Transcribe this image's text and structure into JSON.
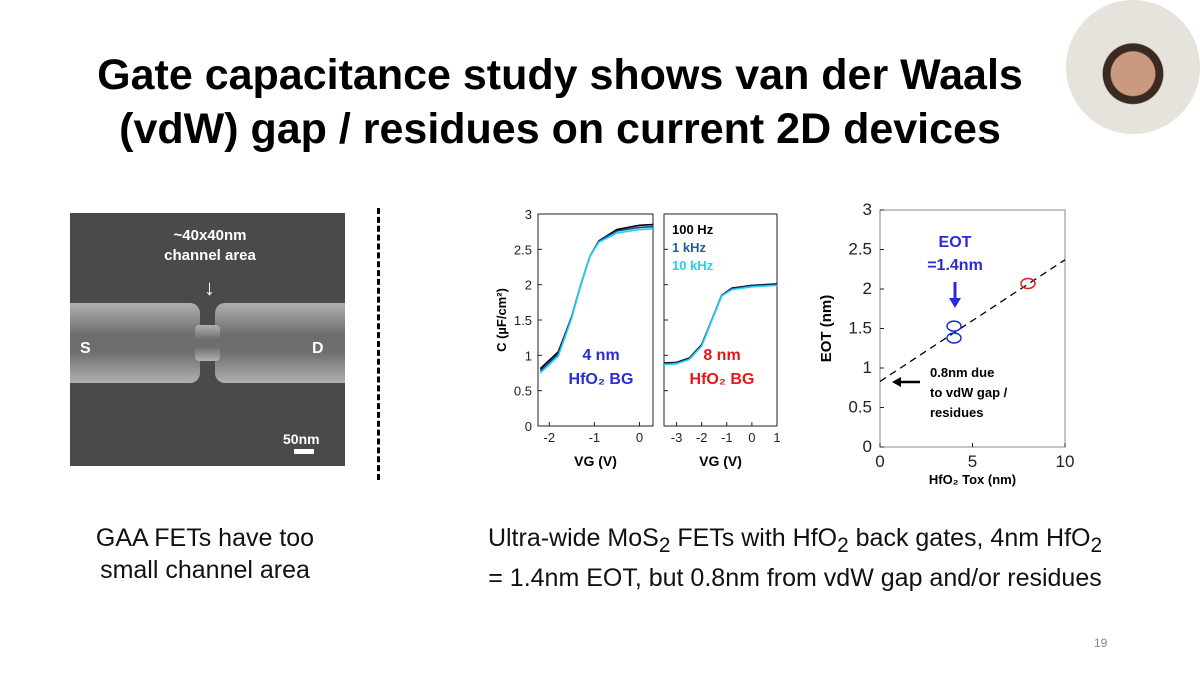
{
  "slide": {
    "title_line1": "Gate capacitance study shows van der Waals",
    "title_line2": "(vdW) gap / residues on current 2D devices",
    "page_number": "19"
  },
  "sem": {
    "label_top1": "~40x40nm",
    "label_top2": "channel area",
    "source": "S",
    "drain": "D",
    "scale": "50nm"
  },
  "captions": {
    "left_line1": "GAA FETs have too",
    "left_line2": "small channel area",
    "right_line1_a": "Ultra-wide MoS",
    "right_line1_sub1": "2",
    "right_line1_b": " FETs with HfO",
    "right_line1_sub2": "2",
    "right_line1_c": " back gates, 4nm HfO",
    "right_line1_sub3": "2",
    "right_line2": "= 1.4nm EOT, but 0.8nm from vdW gap and/or residues"
  },
  "chart_data": [
    {
      "type": "line",
      "title": "",
      "ylabel": "C (µF/cm²)",
      "xlabel": "VG (V)",
      "xlim": [
        -2.25,
        0.3
      ],
      "ylim": [
        0,
        3
      ],
      "xticks": [
        "-2",
        "-1",
        "0"
      ],
      "yticks": [
        "0",
        "0.5",
        "1",
        "1.5",
        "2",
        "2.5",
        "3"
      ],
      "annotation": "4 nm HfO₂ BG",
      "series": [
        {
          "name": "100 Hz",
          "color": "#000000",
          "x": [
            -2.2,
            -1.8,
            -1.5,
            -1.3,
            -1.1,
            -0.9,
            -0.5,
            0,
            0.3
          ],
          "y": [
            0.81,
            1.05,
            1.55,
            2.0,
            2.4,
            2.62,
            2.78,
            2.84,
            2.85
          ]
        },
        {
          "name": "1 kHz",
          "color": "#1f3fa0",
          "x": [
            -2.2,
            -1.8,
            -1.5,
            -1.3,
            -1.1,
            -0.9,
            -0.5,
            0,
            0.3
          ],
          "y": [
            0.78,
            1.02,
            1.55,
            2.0,
            2.4,
            2.62,
            2.76,
            2.81,
            2.82
          ]
        },
        {
          "name": "10 kHz",
          "color": "#22d3f0",
          "x": [
            -2.2,
            -1.8,
            -1.5,
            -1.3,
            -1.1,
            -0.9,
            -0.5,
            0,
            0.3
          ],
          "y": [
            0.75,
            0.99,
            1.53,
            2.0,
            2.4,
            2.6,
            2.73,
            2.78,
            2.79
          ]
        }
      ]
    },
    {
      "type": "line",
      "title": "",
      "xlabel": "VG (V)",
      "xlim": [
        -3.5,
        1
      ],
      "ylim": [
        0,
        3
      ],
      "xticks": [
        "-3",
        "-2",
        "-1",
        "0",
        "1"
      ],
      "annotation": "8 nm HfO₂ BG",
      "legend": [
        "100 Hz",
        "1 kHz",
        "10 kHz"
      ],
      "legend_colors": [
        "#000000",
        "#1f5fa8",
        "#22d3f0"
      ],
      "series": [
        {
          "name": "100 Hz",
          "color": "#000000",
          "x": [
            -3.5,
            -3,
            -2.5,
            -2,
            -1.6,
            -1.2,
            -0.8,
            0,
            1
          ],
          "y": [
            0.89,
            0.9,
            0.96,
            1.15,
            1.5,
            1.85,
            1.95,
            1.99,
            2.01
          ]
        },
        {
          "name": "1 kHz",
          "color": "#1f3fa0",
          "x": [
            -3.5,
            -3,
            -2.5,
            -2,
            -1.6,
            -1.2,
            -0.8,
            0,
            1
          ],
          "y": [
            0.88,
            0.89,
            0.95,
            1.14,
            1.5,
            1.85,
            1.94,
            1.98,
            2.0
          ]
        },
        {
          "name": "10 kHz",
          "color": "#22d3f0",
          "x": [
            -3.5,
            -3,
            -2.5,
            -2,
            -1.6,
            -1.2,
            -0.8,
            0,
            1
          ],
          "y": [
            0.87,
            0.88,
            0.94,
            1.13,
            1.49,
            1.84,
            1.93,
            1.97,
            1.99
          ]
        }
      ]
    },
    {
      "type": "scatter",
      "ylabel": "EOT (nm)",
      "xlabel": "HfO₂ Tox (nm)",
      "xlim": [
        0,
        10
      ],
      "ylim": [
        0,
        3
      ],
      "xticks": [
        "0",
        "5",
        "10"
      ],
      "yticks": [
        "0",
        "0.5",
        "1",
        "1.5",
        "2",
        "2.5",
        "3"
      ],
      "points": [
        {
          "x": 4,
          "y": 1.53,
          "color": "#1a2fd0"
        },
        {
          "x": 4,
          "y": 1.38,
          "color": "#1a2fd0"
        },
        {
          "x": 8,
          "y": 2.07,
          "color": "#e02020"
        }
      ],
      "fit_line": {
        "intercept": 0.83,
        "slope": 0.154
      },
      "annotations": {
        "eot1": "EOT",
        "eot2": "=1.4nm",
        "gap1": "0.8nm due",
        "gap2": "to vdW gap /",
        "gap3": "residues"
      }
    }
  ]
}
